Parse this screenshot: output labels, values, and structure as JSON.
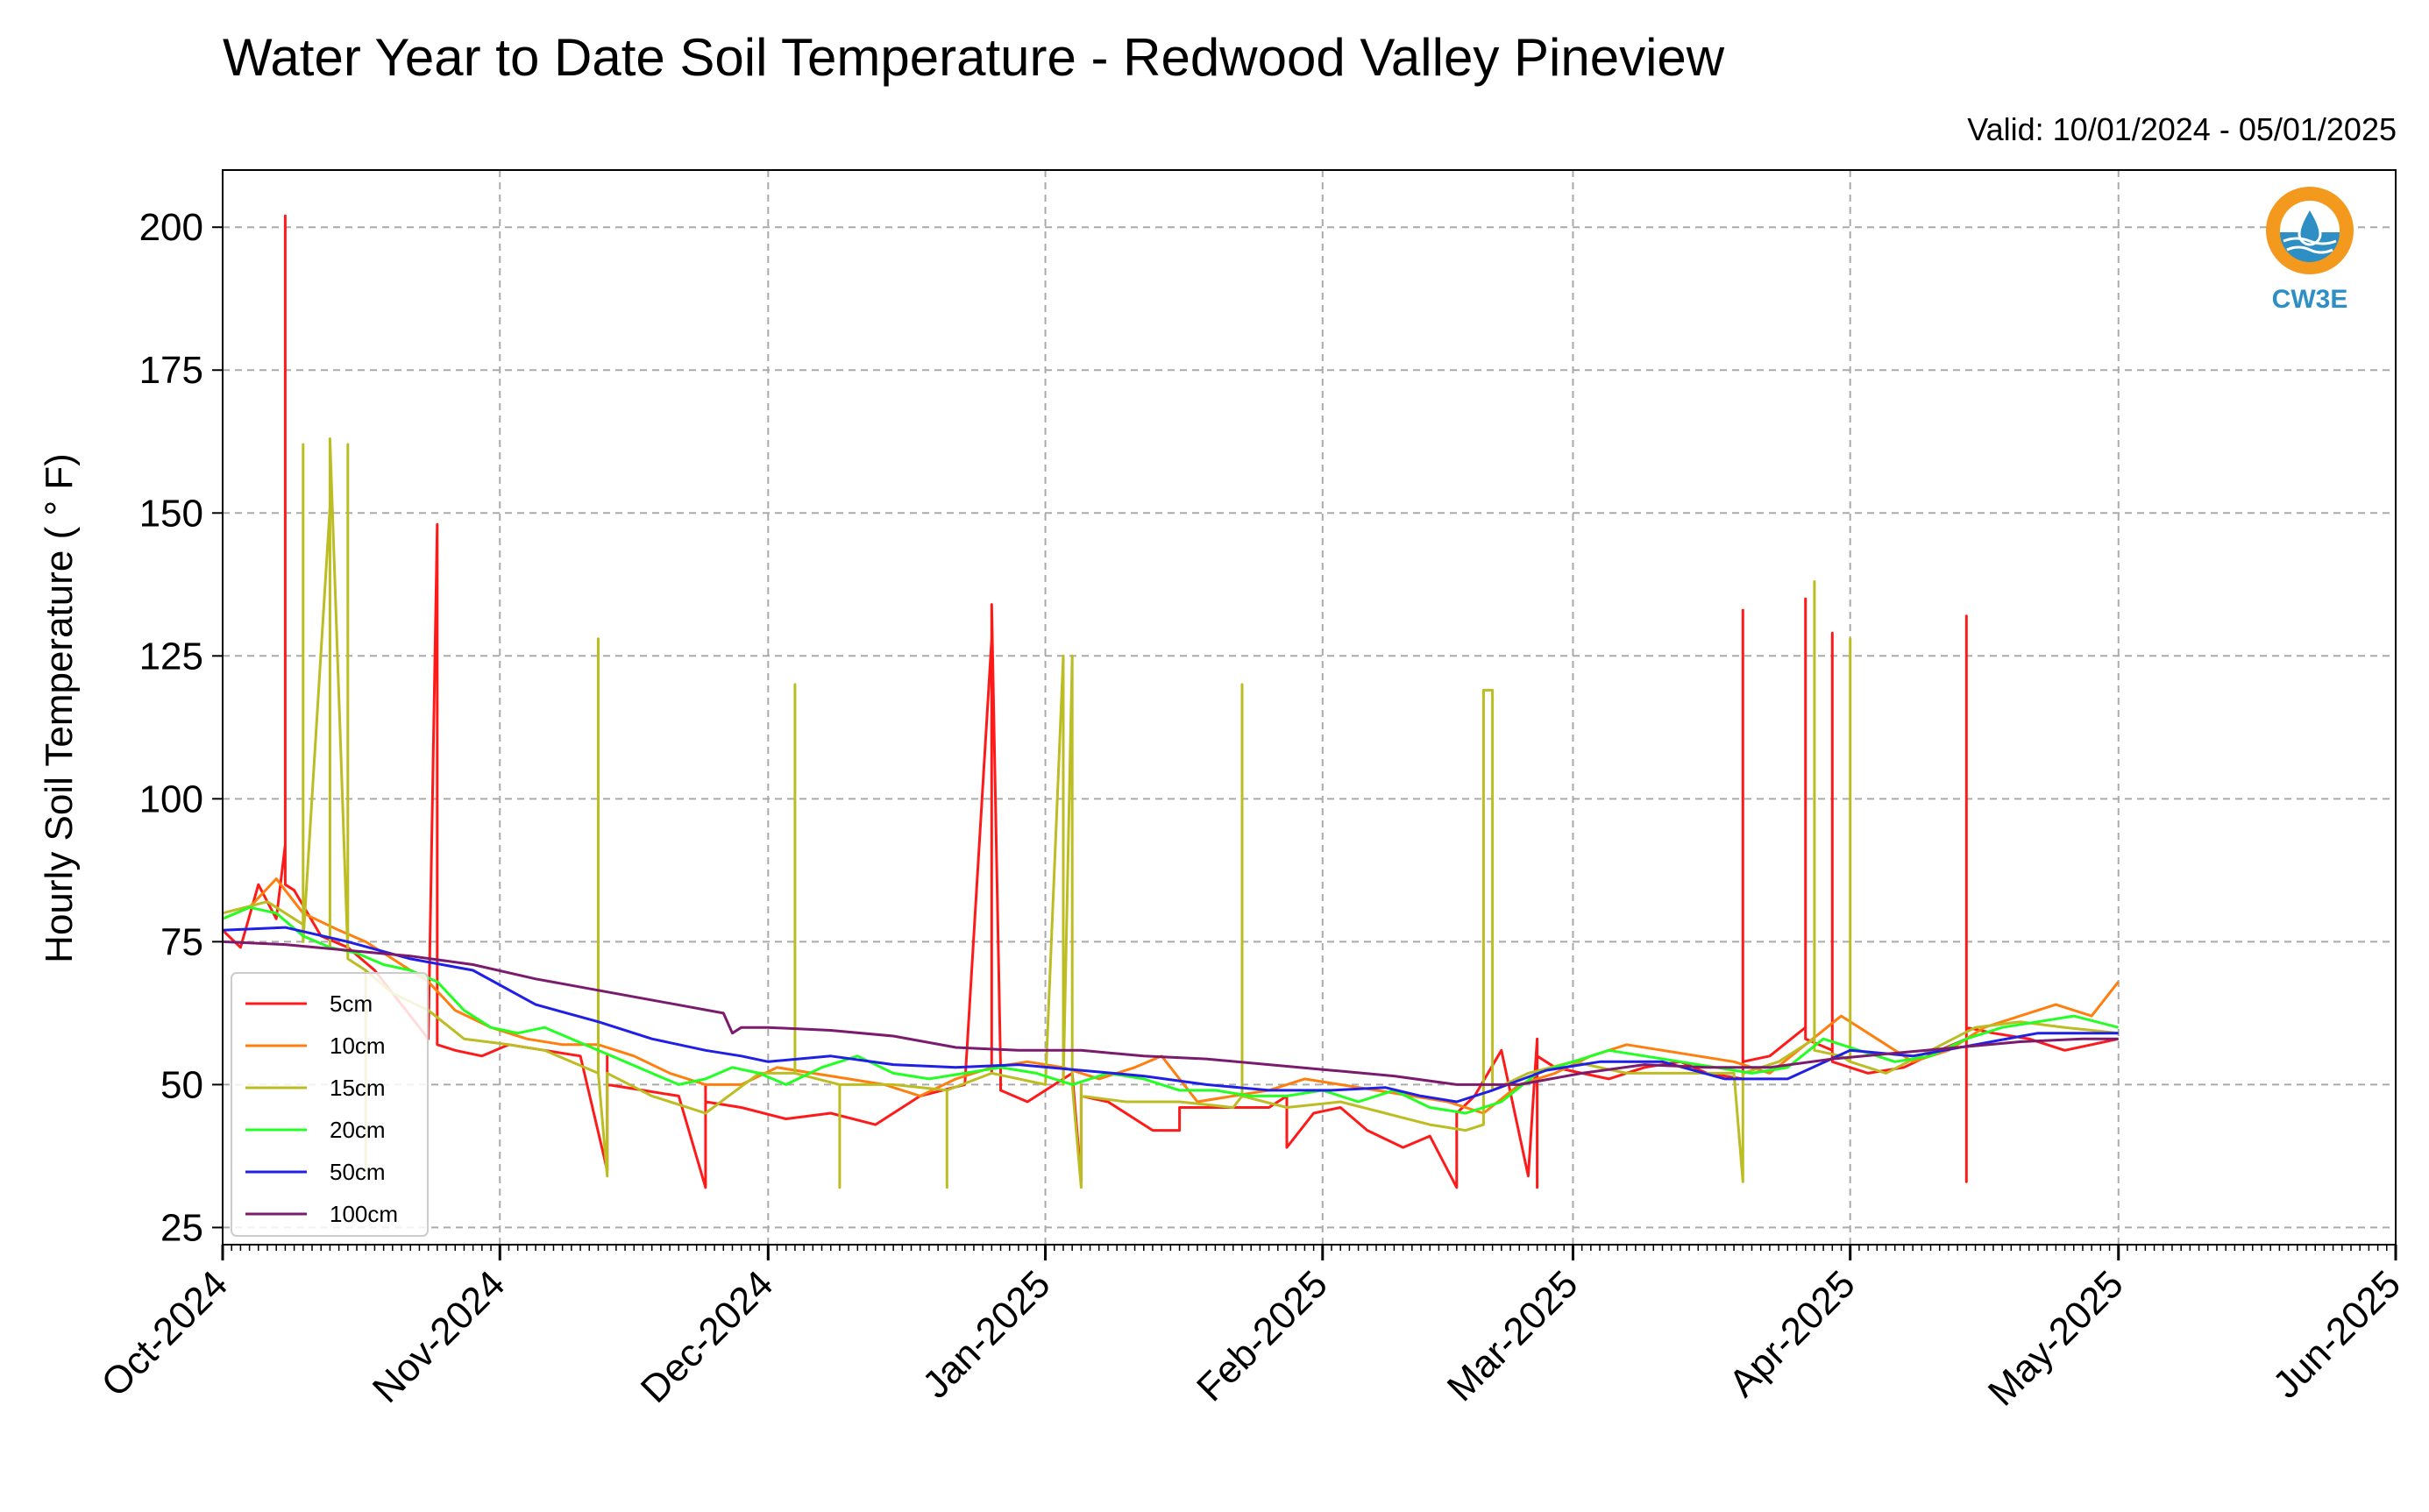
{
  "header": {
    "title": "Water Year to Date Soil Temperature - Redwood Valley Pineview",
    "valid": "Valid: 10/01/2024 - 05/01/2025"
  },
  "logo": {
    "text": "CW3E",
    "icon": "water-drop-sun-icon",
    "colors": {
      "orange": "#f39a1e",
      "blue": "#2d8fc4"
    }
  },
  "chart_data": {
    "type": "line",
    "title": "Water Year to Date Soil Temperature - Redwood Valley Pineview",
    "subtitle": "Valid: 10/01/2024 - 05/01/2025",
    "xlabel": "",
    "ylabel": "Hourly Soil Temperature ( ° F)",
    "xlim": [
      "2024-10-01",
      "2025-06-01"
    ],
    "ylim": [
      22,
      210
    ],
    "grid": true,
    "legend_position": "lower-left",
    "yticks": [
      25,
      50,
      75,
      100,
      125,
      150,
      175,
      200
    ],
    "ytick_labels": [
      "25",
      "50",
      "75",
      "100",
      "125",
      "150",
      "175",
      "200"
    ],
    "xticks": [
      "2024-10-01",
      "2024-11-01",
      "2024-12-01",
      "2025-01-01",
      "2025-02-01",
      "2025-03-01",
      "2025-04-01",
      "2025-05-01",
      "2025-06-01"
    ],
    "xtick_labels": [
      "Oct-2024",
      "Nov-2024",
      "Dec-2024",
      "Jan-2025",
      "Feb-2025",
      "Mar-2025",
      "Apr-2025",
      "May-2025",
      "Jun-2025"
    ],
    "series": [
      {
        "name": "5cm",
        "color": "#ff1a1a",
        "x": [
          "2024-10-01",
          "2024-10-03",
          "2024-10-05",
          "2024-10-07",
          "2024-10-08",
          "2024-10-08",
          "2024-10-08",
          "2024-10-09",
          "2024-10-12",
          "2024-10-15",
          "2024-10-18",
          "2024-10-21",
          "2024-10-24",
          "2024-10-25",
          "2024-10-25",
          "2024-10-25",
          "2024-10-27",
          "2024-10-30",
          "2024-11-02",
          "2024-11-06",
          "2024-11-10",
          "2024-11-13",
          "2024-11-13",
          "2024-11-13",
          "2024-11-17",
          "2024-11-21",
          "2024-11-24",
          "2024-11-24",
          "2024-11-24",
          "2024-11-28",
          "2024-12-03",
          "2024-12-08",
          "2024-12-13",
          "2024-12-18",
          "2024-12-23",
          "2024-12-26",
          "2024-12-26",
          "2024-12-26",
          "2024-12-27",
          "2024-12-27",
          "2024-12-27",
          "2024-12-30",
          "2025-01-04",
          "2025-01-05",
          "2025-01-05",
          "2025-01-05",
          "2025-01-08",
          "2025-01-13",
          "2025-01-16",
          "2025-01-16",
          "2025-01-26",
          "2025-01-28",
          "2025-01-28",
          "2025-01-31",
          "2025-02-03",
          "2025-02-06",
          "2025-02-10",
          "2025-02-13",
          "2025-02-15",
          "2025-02-16",
          "2025-02-16",
          "2025-02-18",
          "2025-02-21",
          "2025-02-24",
          "2025-02-25",
          "2025-02-25",
          "2025-02-25",
          "2025-02-27",
          "2025-03-02",
          "2025-03-05",
          "2025-03-09",
          "2025-03-13",
          "2025-03-16",
          "2025-03-20",
          "2025-03-20",
          "2025-03-20",
          "2025-03-23",
          "2025-03-27",
          "2025-03-27",
          "2025-03-27",
          "2025-03-30",
          "2025-03-30",
          "2025-03-30",
          "2025-04-03",
          "2025-04-07",
          "2025-04-11",
          "2025-04-14",
          "2025-04-14",
          "2025-04-14",
          "2025-04-14",
          "2025-04-17",
          "2025-04-21",
          "2025-04-25",
          "2025-04-28",
          "2025-05-01"
        ],
        "y": [
          77,
          74,
          85,
          79,
          92,
          202,
          85,
          84,
          76,
          74,
          70,
          64,
          58,
          148,
          62,
          57,
          56,
          55,
          57,
          56,
          55,
          35,
          55,
          50,
          49,
          48,
          32,
          50,
          47,
          46,
          44,
          45,
          43,
          48,
          50,
          128,
          52,
          134,
          53,
          51,
          49,
          47,
          52,
          33,
          50,
          48,
          47,
          42,
          42,
          46,
          46,
          48,
          39,
          45,
          46,
          42,
          39,
          41,
          35,
          32,
          45,
          48,
          56,
          34,
          58,
          32,
          55,
          53,
          52,
          51,
          53,
          54,
          52,
          51,
          133,
          54,
          55,
          60,
          135,
          58,
          56,
          129,
          54,
          52,
          53,
          56,
          58,
          33,
          132,
          60,
          59,
          58,
          56,
          57,
          58
        ]
      },
      {
        "name": "10cm",
        "color": "#ff7f0e",
        "x": [
          "2024-10-01",
          "2024-10-04",
          "2024-10-07",
          "2024-10-10",
          "2024-10-14",
          "2024-10-17",
          "2024-10-20",
          "2024-10-24",
          "2024-10-27",
          "2024-10-31",
          "2024-11-04",
          "2024-11-08",
          "2024-11-12",
          "2024-11-16",
          "2024-11-20",
          "2024-11-24",
          "2024-11-28",
          "2024-12-02",
          "2024-12-06",
          "2024-12-10",
          "2024-12-14",
          "2024-12-18",
          "2024-12-22",
          "2024-12-26",
          "2024-12-30",
          "2025-01-03",
          "2025-01-07",
          "2025-01-11",
          "2025-01-14",
          "2025-01-18",
          "2025-01-22",
          "2025-01-26",
          "2025-01-30",
          "2025-02-03",
          "2025-02-07",
          "2025-02-11",
          "2025-02-15",
          "2025-02-19",
          "2025-02-23",
          "2025-02-27",
          "2025-03-03",
          "2025-03-07",
          "2025-03-11",
          "2025-03-15",
          "2025-03-19",
          "2025-03-23",
          "2025-03-27",
          "2025-03-31",
          "2025-04-04",
          "2025-04-08",
          "2025-04-12",
          "2025-04-16",
          "2025-04-20",
          "2025-04-24",
          "2025-04-28",
          "2025-05-01"
        ],
        "y": [
          79,
          81,
          86,
          80,
          77,
          75,
          72,
          68,
          63,
          60,
          58,
          57,
          57,
          55,
          52,
          50,
          50,
          53,
          52,
          51,
          50,
          48,
          51,
          53,
          54,
          53,
          51,
          53,
          55,
          47,
          48,
          49,
          51,
          50,
          49,
          48,
          47,
          45,
          50,
          52,
          55,
          57,
          56,
          55,
          54,
          52,
          57,
          62,
          58,
          54,
          56,
          60,
          62,
          64,
          62,
          68
        ]
      },
      {
        "name": "15cm",
        "color": "#bcbd22",
        "x": [
          "2024-10-01",
          "2024-10-06",
          "2024-10-10",
          "2024-10-10",
          "2024-10-10",
          "2024-10-13",
          "2024-10-13",
          "2024-10-13",
          "2024-10-15",
          "2024-10-15",
          "2024-10-15",
          "2024-10-17",
          "2024-10-17",
          "2024-10-17",
          "2024-10-20",
          "2024-10-24",
          "2024-10-28",
          "2024-11-02",
          "2024-11-06",
          "2024-11-12",
          "2024-11-12",
          "2024-11-12",
          "2024-11-13",
          "2024-11-13",
          "2024-11-18",
          "2024-11-24",
          "2024-11-30",
          "2024-12-04",
          "2024-12-04",
          "2024-12-04",
          "2024-12-09",
          "2024-12-09",
          "2024-12-09",
          "2024-12-15",
          "2024-12-21",
          "2024-12-21",
          "2024-12-21",
          "2024-12-26",
          "2025-01-01",
          "2025-01-03",
          "2025-01-03",
          "2025-01-04",
          "2025-01-04",
          "2025-01-05",
          "2025-01-05",
          "2025-01-05",
          "2025-01-10",
          "2025-01-16",
          "2025-01-22",
          "2025-01-23",
          "2025-01-23",
          "2025-01-23",
          "2025-01-28",
          "2025-02-03",
          "2025-02-08",
          "2025-02-13",
          "2025-02-17",
          "2025-02-19",
          "2025-02-19",
          "2025-02-20",
          "2025-02-20",
          "2025-02-24",
          "2025-03-01",
          "2025-03-07",
          "2025-03-13",
          "2025-03-19",
          "2025-03-20",
          "2025-03-20",
          "2025-03-24",
          "2025-03-28",
          "2025-03-28",
          "2025-03-28",
          "2025-03-31",
          "2025-04-01",
          "2025-04-01",
          "2025-04-01",
          "2025-04-05",
          "2025-04-10",
          "2025-04-15",
          "2025-04-20",
          "2025-04-25",
          "2025-05-01"
        ],
        "y": [
          80,
          82,
          78,
          162,
          75,
          151,
          74,
          163,
          73,
          162,
          72,
          70,
          35,
          70,
          66,
          63,
          58,
          57,
          56,
          52,
          128,
          52,
          34,
          52,
          48,
          45,
          52,
          52,
          120,
          52,
          50,
          32,
          50,
          50,
          49,
          32,
          49,
          52,
          50,
          125,
          50,
          125,
          50,
          32,
          50,
          48,
          47,
          47,
          46,
          48,
          120,
          48,
          46,
          47,
          45,
          43,
          42,
          43,
          119,
          119,
          49,
          52,
          54,
          52,
          52,
          52,
          33,
          52,
          54,
          58,
          138,
          56,
          55,
          54,
          128,
          54,
          52,
          56,
          60,
          61,
          60,
          59
        ]
      },
      {
        "name": "20cm",
        "color": "#22ff22",
        "x": [
          "2024-10-01",
          "2024-10-04",
          "2024-10-07",
          "2024-10-10",
          "2024-10-13",
          "2024-10-16",
          "2024-10-19",
          "2024-10-22",
          "2024-10-25",
          "2024-10-28",
          "2024-10-31",
          "2024-11-03",
          "2024-11-06",
          "2024-11-09",
          "2024-11-12",
          "2024-11-15",
          "2024-11-18",
          "2024-11-21",
          "2024-11-24",
          "2024-11-27",
          "2024-11-30",
          "2024-12-03",
          "2024-12-07",
          "2024-12-11",
          "2024-12-15",
          "2024-12-19",
          "2024-12-23",
          "2024-12-27",
          "2024-12-31",
          "2025-01-04",
          "2025-01-08",
          "2025-01-12",
          "2025-01-16",
          "2025-01-20",
          "2025-01-24",
          "2025-01-28",
          "2025-02-01",
          "2025-02-05",
          "2025-02-09",
          "2025-02-13",
          "2025-02-17",
          "2025-02-21",
          "2025-02-25",
          "2025-03-01",
          "2025-03-05",
          "2025-03-09",
          "2025-03-13",
          "2025-03-17",
          "2025-03-21",
          "2025-03-25",
          "2025-03-29",
          "2025-04-02",
          "2025-04-06",
          "2025-04-10",
          "2025-04-14",
          "2025-04-18",
          "2025-04-22",
          "2025-04-26",
          "2025-05-01"
        ],
        "y": [
          79,
          81,
          80,
          76,
          74,
          73,
          71,
          70,
          68,
          63,
          60,
          59,
          60,
          58,
          56,
          54,
          52,
          50,
          51,
          53,
          52,
          50,
          53,
          55,
          52,
          51,
          52,
          53,
          52,
          50,
          52,
          51,
          49,
          49,
          48,
          48,
          49,
          47,
          49,
          46,
          45,
          47,
          52,
          54,
          56,
          55,
          54,
          53,
          52,
          53,
          58,
          56,
          54,
          55,
          58,
          60,
          61,
          62,
          60
        ]
      },
      {
        "name": "50cm",
        "color": "#1f1fe6",
        "x": [
          "2024-10-01",
          "2024-10-08",
          "2024-10-15",
          "2024-10-22",
          "2024-10-29",
          "2024-11-05",
          "2024-11-12",
          "2024-11-18",
          "2024-11-24",
          "2024-11-28",
          "2024-12-01",
          "2024-12-08",
          "2024-12-15",
          "2024-12-22",
          "2024-12-29",
          "2025-01-05",
          "2025-01-12",
          "2025-01-19",
          "2025-01-26",
          "2025-02-02",
          "2025-02-08",
          "2025-02-12",
          "2025-02-16",
          "2025-02-20",
          "2025-02-26",
          "2025-03-04",
          "2025-03-11",
          "2025-03-18",
          "2025-03-25",
          "2025-04-01",
          "2025-04-08",
          "2025-04-15",
          "2025-04-22",
          "2025-05-01"
        ],
        "y": [
          77,
          77.5,
          75,
          72,
          70,
          64,
          61,
          58,
          56,
          55,
          54,
          55,
          53.5,
          53,
          53.5,
          52.5,
          51.5,
          50,
          49,
          49,
          49.5,
          48,
          47,
          49,
          52.5,
          54,
          54,
          51,
          51,
          56,
          55,
          57,
          59,
          59
        ]
      },
      {
        "name": "100cm",
        "color": "#7b1b6e",
        "x": [
          "2024-10-01",
          "2024-10-08",
          "2024-10-15",
          "2024-10-22",
          "2024-10-29",
          "2024-11-05",
          "2024-11-12",
          "2024-11-19",
          "2024-11-26",
          "2024-11-27",
          "2024-11-28",
          "2024-12-01",
          "2024-12-08",
          "2024-12-15",
          "2024-12-22",
          "2024-12-29",
          "2025-01-05",
          "2025-01-12",
          "2025-01-19",
          "2025-01-26",
          "2025-02-02",
          "2025-02-09",
          "2025-02-16",
          "2025-02-23",
          "2025-03-02",
          "2025-03-09",
          "2025-03-16",
          "2025-03-23",
          "2025-03-30",
          "2025-04-06",
          "2025-04-13",
          "2025-04-20",
          "2025-04-27",
          "2025-05-01"
        ],
        "y": [
          75,
          74.5,
          73.5,
          72.5,
          71,
          68.5,
          66.5,
          64.5,
          62.5,
          59,
          60,
          60,
          59.5,
          58.5,
          56.5,
          56,
          56,
          55,
          54.5,
          53.5,
          52.5,
          51.5,
          50,
          50,
          52,
          53.5,
          53,
          53,
          54.5,
          55.5,
          56.5,
          57.5,
          58,
          58
        ]
      }
    ]
  }
}
